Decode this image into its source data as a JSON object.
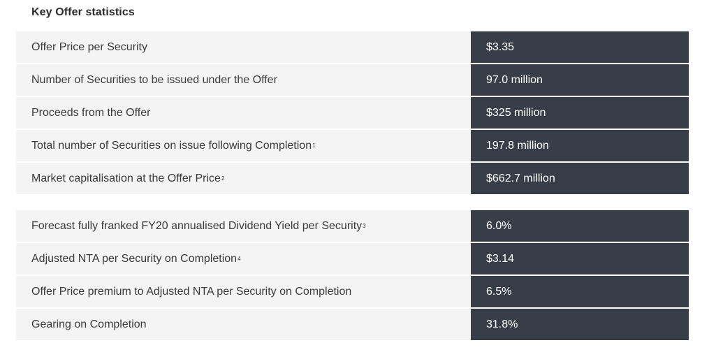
{
  "title": "Key Offer statistics",
  "table1": {
    "rows": [
      {
        "label": "Offer Price per Security",
        "note": "",
        "value": "$3.35"
      },
      {
        "label": "Number of Securities to be issued under the Offer",
        "note": "",
        "value": "97.0 million"
      },
      {
        "label": "Proceeds from the Offer",
        "note": "",
        "value": "$325 million"
      },
      {
        "label": "Total number of Securities on issue following Completion",
        "note": "1",
        "value": "197.8 million"
      },
      {
        "label": "Market capitalisation at the Offer Price",
        "note": "2",
        "value": "$662.7 million"
      }
    ]
  },
  "table2": {
    "rows": [
      {
        "label": "Forecast fully franked FY20 annualised Dividend Yield per Security",
        "note": "3",
        "value": "6.0%"
      },
      {
        "label": "Adjusted NTA per Security on Completion",
        "note": "4",
        "value": "$3.14"
      },
      {
        "label": "Offer Price premium to Adjusted NTA per Security on Completion",
        "note": "",
        "value": "6.5%"
      },
      {
        "label": "Gearing on Completion",
        "note": "",
        "value": "31.8%"
      }
    ]
  }
}
